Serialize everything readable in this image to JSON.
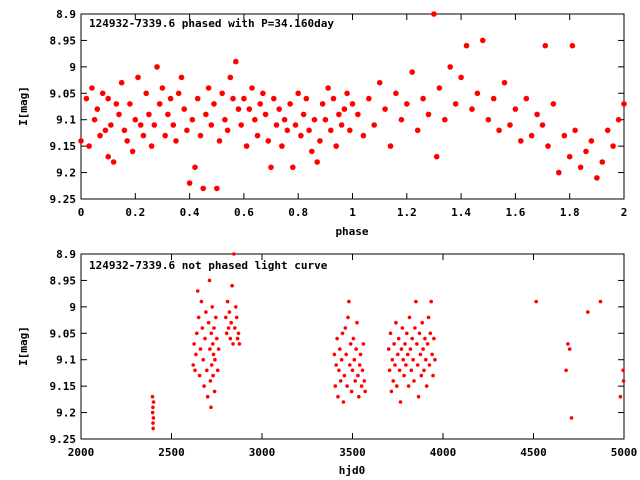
{
  "colors": {
    "points": "#ff0000",
    "axes": "#000000",
    "background": "#ffffff"
  },
  "chart_data": [
    {
      "type": "scatter",
      "title": "124932-7339.6 phased with P=34.160day",
      "xlabel": "phase",
      "ylabel": "I[mag]",
      "xlim": [
        0,
        2
      ],
      "ylim": [
        8.9,
        9.25
      ],
      "y_inverted": true,
      "xticks": [
        "0",
        "0.2",
        "0.4",
        "0.6",
        "0.8",
        "1",
        "1.2",
        "1.4",
        "1.6",
        "1.8",
        "2"
      ],
      "yticks": [
        "8.9",
        "8.95",
        "9",
        "9.05",
        "9.1",
        "9.15",
        "9.2",
        "9.25"
      ],
      "marker": "filled-circle",
      "grid": false,
      "points": [
        [
          0.0,
          9.14
        ],
        [
          0.02,
          9.06
        ],
        [
          0.03,
          9.15
        ],
        [
          0.04,
          9.04
        ],
        [
          0.05,
          9.1
        ],
        [
          0.06,
          9.08
        ],
        [
          0.07,
          9.13
        ],
        [
          0.08,
          9.05
        ],
        [
          0.09,
          9.12
        ],
        [
          0.1,
          9.06
        ],
        [
          0.1,
          9.17
        ],
        [
          0.11,
          9.11
        ],
        [
          0.12,
          9.18
        ],
        [
          0.13,
          9.07
        ],
        [
          0.14,
          9.09
        ],
        [
          0.15,
          9.03
        ],
        [
          0.16,
          9.12
        ],
        [
          0.17,
          9.14
        ],
        [
          0.18,
          9.07
        ],
        [
          0.19,
          9.16
        ],
        [
          0.2,
          9.1
        ],
        [
          0.21,
          9.02
        ],
        [
          0.22,
          9.11
        ],
        [
          0.23,
          9.13
        ],
        [
          0.24,
          9.05
        ],
        [
          0.25,
          9.09
        ],
        [
          0.26,
          9.15
        ],
        [
          0.27,
          9.11
        ],
        [
          0.28,
          9.0
        ],
        [
          0.29,
          9.07
        ],
        [
          0.3,
          9.04
        ],
        [
          0.31,
          9.13
        ],
        [
          0.32,
          9.09
        ],
        [
          0.33,
          9.06
        ],
        [
          0.34,
          9.11
        ],
        [
          0.35,
          9.14
        ],
        [
          0.36,
          9.05
        ],
        [
          0.37,
          9.02
        ],
        [
          0.38,
          9.08
        ],
        [
          0.39,
          9.12
        ],
        [
          0.4,
          9.22
        ],
        [
          0.41,
          9.1
        ],
        [
          0.42,
          9.19
        ],
        [
          0.43,
          9.06
        ],
        [
          0.44,
          9.13
        ],
        [
          0.45,
          9.23
        ],
        [
          0.46,
          9.09
        ],
        [
          0.47,
          9.04
        ],
        [
          0.48,
          9.11
        ],
        [
          0.49,
          9.07
        ],
        [
          0.5,
          9.23
        ],
        [
          0.51,
          9.14
        ],
        [
          0.52,
          9.05
        ],
        [
          0.53,
          9.1
        ],
        [
          0.54,
          9.12
        ],
        [
          0.55,
          9.02
        ],
        [
          0.56,
          9.06
        ],
        [
          0.57,
          8.99
        ],
        [
          0.58,
          9.08
        ],
        [
          0.59,
          9.11
        ],
        [
          0.6,
          9.06
        ],
        [
          0.61,
          9.15
        ],
        [
          0.62,
          9.08
        ],
        [
          0.63,
          9.04
        ],
        [
          0.64,
          9.1
        ],
        [
          0.65,
          9.13
        ],
        [
          0.66,
          9.07
        ],
        [
          0.67,
          9.05
        ],
        [
          0.68,
          9.09
        ],
        [
          0.69,
          9.14
        ],
        [
          0.7,
          9.19
        ],
        [
          0.71,
          9.06
        ],
        [
          0.72,
          9.11
        ],
        [
          0.73,
          9.08
        ],
        [
          0.74,
          9.15
        ],
        [
          0.75,
          9.1
        ],
        [
          0.76,
          9.12
        ],
        [
          0.77,
          9.07
        ],
        [
          0.78,
          9.19
        ],
        [
          0.79,
          9.11
        ],
        [
          0.8,
          9.05
        ],
        [
          0.81,
          9.13
        ],
        [
          0.82,
          9.09
        ],
        [
          0.83,
          9.06
        ],
        [
          0.84,
          9.12
        ],
        [
          0.85,
          9.16
        ],
        [
          0.86,
          9.1
        ],
        [
          0.87,
          9.18
        ],
        [
          0.88,
          9.14
        ],
        [
          0.89,
          9.07
        ],
        [
          0.9,
          9.1
        ],
        [
          0.91,
          9.04
        ],
        [
          0.92,
          9.12
        ],
        [
          0.93,
          9.06
        ],
        [
          0.94,
          9.15
        ],
        [
          0.95,
          9.09
        ],
        [
          0.96,
          9.11
        ],
        [
          0.97,
          9.08
        ],
        [
          0.98,
          9.05
        ],
        [
          0.99,
          9.12
        ],
        [
          1.0,
          9.07
        ],
        [
          1.02,
          9.09
        ],
        [
          1.04,
          9.13
        ],
        [
          1.06,
          9.06
        ],
        [
          1.08,
          9.11
        ],
        [
          1.1,
          9.03
        ],
        [
          1.12,
          9.08
        ],
        [
          1.14,
          9.15
        ],
        [
          1.16,
          9.05
        ],
        [
          1.18,
          9.1
        ],
        [
          1.2,
          9.07
        ],
        [
          1.22,
          9.01
        ],
        [
          1.24,
          9.12
        ],
        [
          1.26,
          9.06
        ],
        [
          1.28,
          9.09
        ],
        [
          1.3,
          8.9
        ],
        [
          1.31,
          9.17
        ],
        [
          1.32,
          9.04
        ],
        [
          1.34,
          9.1
        ],
        [
          1.36,
          9.0
        ],
        [
          1.38,
          9.07
        ],
        [
          1.4,
          9.02
        ],
        [
          1.42,
          8.96
        ],
        [
          1.44,
          9.08
        ],
        [
          1.46,
          9.05
        ],
        [
          1.48,
          8.95
        ],
        [
          1.5,
          9.1
        ],
        [
          1.52,
          9.06
        ],
        [
          1.54,
          9.12
        ],
        [
          1.56,
          9.03
        ],
        [
          1.58,
          9.11
        ],
        [
          1.6,
          9.08
        ],
        [
          1.62,
          9.14
        ],
        [
          1.64,
          9.06
        ],
        [
          1.66,
          9.13
        ],
        [
          1.68,
          9.09
        ],
        [
          1.7,
          9.11
        ],
        [
          1.71,
          8.96
        ],
        [
          1.72,
          9.15
        ],
        [
          1.74,
          9.07
        ],
        [
          1.76,
          9.2
        ],
        [
          1.78,
          9.13
        ],
        [
          1.8,
          9.17
        ],
        [
          1.81,
          8.96
        ],
        [
          1.82,
          9.12
        ],
        [
          1.84,
          9.19
        ],
        [
          1.86,
          9.16
        ],
        [
          1.88,
          9.14
        ],
        [
          1.9,
          9.21
        ],
        [
          1.92,
          9.18
        ],
        [
          1.94,
          9.12
        ],
        [
          1.96,
          9.15
        ],
        [
          1.98,
          9.1
        ],
        [
          2.0,
          9.07
        ]
      ]
    },
    {
      "type": "scatter",
      "title": "124932-7339.6 not phased light curve",
      "xlabel": "hjd0",
      "ylabel": "I[mag]",
      "xlim": [
        2000,
        5000
      ],
      "ylim": [
        8.9,
        9.25
      ],
      "y_inverted": true,
      "xticks": [
        "2000",
        "2500",
        "3000",
        "3500",
        "4000",
        "4500",
        "5000"
      ],
      "yticks": [
        "8.9",
        "8.95",
        "9",
        "9.05",
        "9.1",
        "9.15",
        "9.2",
        "9.25"
      ],
      "marker": "small-dot",
      "grid": false,
      "points": [
        [
          2395,
          9.17
        ],
        [
          2396,
          9.2
        ],
        [
          2397,
          9.19
        ],
        [
          2398,
          9.22
        ],
        [
          2399,
          9.23
        ],
        [
          2400,
          9.21
        ],
        [
          2401,
          9.18
        ],
        [
          2620,
          9.11
        ],
        [
          2625,
          9.07
        ],
        [
          2630,
          9.12
        ],
        [
          2635,
          9.09
        ],
        [
          2640,
          9.05
        ],
        [
          2645,
          8.97
        ],
        [
          2650,
          9.02
        ],
        [
          2655,
          9.13
        ],
        [
          2660,
          9.08
        ],
        [
          2665,
          8.99
        ],
        [
          2670,
          9.04
        ],
        [
          2675,
          9.1
        ],
        [
          2680,
          9.15
        ],
        [
          2685,
          9.06
        ],
        [
          2690,
          9.01
        ],
        [
          2695,
          9.12
        ],
        [
          2700,
          9.17
        ],
        [
          2705,
          9.03
        ],
        [
          2710,
          8.95
        ],
        [
          2712,
          9.08
        ],
        [
          2715,
          9.14
        ],
        [
          2718,
          9.19
        ],
        [
          2720,
          9.05
        ],
        [
          2722,
          9.11
        ],
        [
          2725,
          9.0
        ],
        [
          2728,
          9.07
        ],
        [
          2730,
          9.13
        ],
        [
          2732,
          9.09
        ],
        [
          2735,
          9.04
        ],
        [
          2738,
          9.16
        ],
        [
          2740,
          9.1
        ],
        [
          2745,
          9.02
        ],
        [
          2750,
          9.06
        ],
        [
          2755,
          9.12
        ],
        [
          2760,
          9.08
        ],
        [
          2800,
          9.02
        ],
        [
          2805,
          9.05
        ],
        [
          2810,
          8.99
        ],
        [
          2815,
          9.04
        ],
        [
          2820,
          9.01
        ],
        [
          2825,
          9.06
        ],
        [
          2830,
          9.03
        ],
        [
          2835,
          8.96
        ],
        [
          2840,
          9.07
        ],
        [
          2845,
          8.9
        ],
        [
          2850,
          9.04
        ],
        [
          2855,
          9.0
        ],
        [
          2860,
          9.02
        ],
        [
          2865,
          9.06
        ],
        [
          2870,
          9.05
        ],
        [
          2875,
          9.07
        ],
        [
          3400,
          9.09
        ],
        [
          3405,
          9.15
        ],
        [
          3410,
          9.11
        ],
        [
          3415,
          9.06
        ],
        [
          3420,
          9.17
        ],
        [
          3425,
          9.12
        ],
        [
          3430,
          9.08
        ],
        [
          3435,
          9.14
        ],
        [
          3440,
          9.1
        ],
        [
          3445,
          9.05
        ],
        [
          3450,
          9.18
        ],
        [
          3455,
          9.13
        ],
        [
          3460,
          9.04
        ],
        [
          3465,
          9.09
        ],
        [
          3470,
          9.15
        ],
        [
          3475,
          9.02
        ],
        [
          3480,
          8.99
        ],
        [
          3485,
          9.11
        ],
        [
          3490,
          9.07
        ],
        [
          3495,
          9.16
        ],
        [
          3500,
          9.12
        ],
        [
          3505,
          9.06
        ],
        [
          3510,
          9.1
        ],
        [
          3515,
          9.14
        ],
        [
          3520,
          9.08
        ],
        [
          3525,
          9.03
        ],
        [
          3530,
          9.13
        ],
        [
          3535,
          9.17
        ],
        [
          3540,
          9.11
        ],
        [
          3545,
          9.09
        ],
        [
          3550,
          9.15
        ],
        [
          3555,
          9.12
        ],
        [
          3560,
          9.07
        ],
        [
          3565,
          9.14
        ],
        [
          3570,
          9.16
        ],
        [
          3700,
          9.08
        ],
        [
          3705,
          9.12
        ],
        [
          3710,
          9.05
        ],
        [
          3715,
          9.16
        ],
        [
          3720,
          9.1
        ],
        [
          3725,
          9.14
        ],
        [
          3730,
          9.07
        ],
        [
          3735,
          9.11
        ],
        [
          3740,
          9.03
        ],
        [
          3745,
          9.15
        ],
        [
          3750,
          9.09
        ],
        [
          3755,
          9.06
        ],
        [
          3760,
          9.12
        ],
        [
          3765,
          9.18
        ],
        [
          3770,
          9.08
        ],
        [
          3775,
          9.04
        ],
        [
          3780,
          9.1
        ],
        [
          3785,
          9.13
        ],
        [
          3790,
          9.07
        ],
        [
          3795,
          9.11
        ],
        [
          3800,
          9.05
        ],
        [
          3805,
          9.09
        ],
        [
          3810,
          9.15
        ],
        [
          3815,
          9.02
        ],
        [
          3820,
          9.08
        ],
        [
          3825,
          9.12
        ],
        [
          3830,
          9.06
        ],
        [
          3835,
          9.1
        ],
        [
          3840,
          9.14
        ],
        [
          3845,
          9.04
        ],
        [
          3850,
          8.99
        ],
        [
          3855,
          9.07
        ],
        [
          3860,
          9.11
        ],
        [
          3865,
          9.17
        ],
        [
          3870,
          9.05
        ],
        [
          3875,
          9.09
        ],
        [
          3880,
          9.13
        ],
        [
          3885,
          9.03
        ],
        [
          3890,
          9.08
        ],
        [
          3895,
          9.12
        ],
        [
          3900,
          9.06
        ],
        [
          3905,
          9.1
        ],
        [
          3910,
          9.15
        ],
        [
          3915,
          9.07
        ],
        [
          3920,
          9.02
        ],
        [
          3925,
          9.11
        ],
        [
          3930,
          9.05
        ],
        [
          3935,
          8.99
        ],
        [
          3940,
          9.09
        ],
        [
          3945,
          9.13
        ],
        [
          3950,
          9.06
        ],
        [
          3955,
          9.1
        ],
        [
          4515,
          8.99
        ],
        [
          4680,
          9.12
        ],
        [
          4690,
          9.07
        ],
        [
          4700,
          9.08
        ],
        [
          4710,
          9.21
        ],
        [
          4800,
          9.01
        ],
        [
          4870,
          8.99
        ],
        [
          4980,
          9.17
        ],
        [
          4995,
          9.12
        ],
        [
          4998,
          9.14
        ]
      ]
    }
  ]
}
